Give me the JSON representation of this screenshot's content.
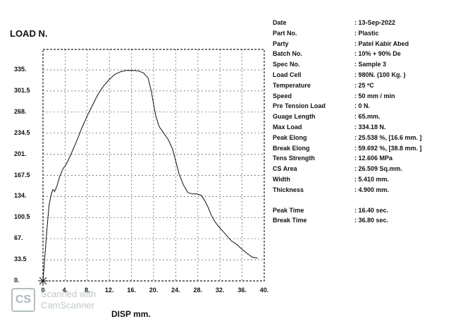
{
  "chart_data": {
    "type": "line",
    "ylabel": "LOAD  N.",
    "xlabel": "DISP  mm.",
    "xlim": [
      0,
      40
    ],
    "ylim": [
      0,
      367.5
    ],
    "x_ticks": [
      "0",
      "4.",
      "8.",
      "12.",
      "16.",
      "20.",
      "24.",
      "28.",
      "32.",
      "36.",
      "40."
    ],
    "y_ticks": [
      "0.",
      "33.5",
      "67.",
      "100.5",
      "134.",
      "167.5",
      "201.",
      "234.5",
      "268.",
      "301.5",
      "335."
    ],
    "grid": true,
    "series": [
      {
        "x": [
          0,
          0.3,
          0.7,
          1.1,
          1.5,
          1.8,
          2.1,
          2.5,
          3.0,
          3.6,
          4.2,
          5.0,
          6.0,
          7.0,
          8.0,
          9.0,
          10.0,
          11.0,
          12.0,
          13.0,
          14.0,
          15.0,
          16.0,
          16.6,
          17.4,
          18.2,
          19.0,
          19.6,
          20.0,
          20.4,
          21.0,
          21.8,
          22.6,
          23.4,
          24.0,
          24.6,
          25.4,
          26.2,
          27.0,
          27.8,
          28.6,
          29.2,
          29.8,
          30.4,
          31.0,
          31.6,
          32.4,
          33.2,
          34.0,
          35.0,
          36.0,
          37.0,
          37.8,
          38.8
        ],
        "y": [
          0,
          35,
          80,
          120,
          138,
          145,
          142,
          150,
          165,
          178,
          185,
          200,
          220,
          242,
          262,
          280,
          297,
          310,
          320,
          328,
          332,
          334,
          334.18,
          334,
          333,
          330,
          322,
          300,
          280,
          262,
          245,
          235,
          225,
          210,
          190,
          170,
          152,
          140,
          138,
          138,
          136,
          128,
          118,
          105,
          95,
          88,
          80,
          72,
          64,
          58,
          50,
          43,
          38,
          36
        ]
      }
    ]
  },
  "info": [
    {
      "label": "Date",
      "value": ": 13-Sep-2022"
    },
    {
      "label": "Part No.",
      "value": ": Plastic"
    },
    {
      "label": "Party",
      "value": ": Patel Kabir Abed"
    },
    {
      "label": "Batch No.",
      "value": ": 10% + 90% De"
    },
    {
      "label": "Spec No.",
      "value": ": Sample 3"
    },
    {
      "label": "Load Cell",
      "value": ": 980N.  (100 Kg. )"
    },
    {
      "label": "Temperature",
      "value": ": 25 ºC"
    },
    {
      "label": "Speed",
      "value": ": 50 mm / min"
    },
    {
      "label": "Pre Tension Load",
      "value": ": 0 N."
    },
    {
      "label": "Guage Length",
      "value": ": 65.mm."
    },
    {
      "label": "Max Load",
      "value": ": 334.18 N."
    },
    {
      "label": "Peak Elong",
      "value": ": 25.538 %, [16.6 mm. ]"
    },
    {
      "label": "Break Elong",
      "value": ": 59.692 %, [38.8 mm. ]"
    },
    {
      "label": "Tens Strength",
      "value": ": 12.606 MPa"
    },
    {
      "label": "CS Area",
      "value": ": 26.509 Sq.mm."
    },
    {
      "label": "Width",
      "value": ": 5.410 mm."
    },
    {
      "label": "Thickness",
      "value": ": 4.900 mm."
    }
  ],
  "times": [
    {
      "label": "Peak Time",
      "value": ": 16.40 sec."
    },
    {
      "label": "Break Time",
      "value": ": 36.80 sec."
    }
  ],
  "watermark": {
    "logo": "CS",
    "line1": "Scanned with",
    "line2": "CamScanner"
  }
}
